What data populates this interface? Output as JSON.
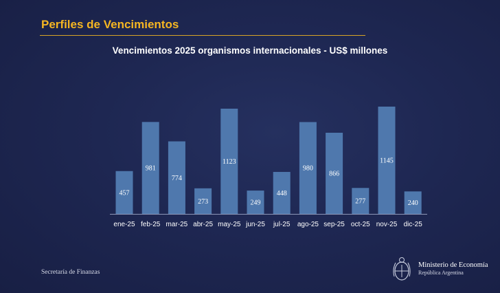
{
  "header": {
    "section_title": "Perfiles de Vencimientos",
    "accent_color": "#f5b622"
  },
  "chart_data": {
    "type": "bar",
    "title": "Vencimientos 2025 organismos internacionales - US$ millones",
    "categories": [
      "ene-25",
      "feb-25",
      "mar-25",
      "abr-25",
      "may-25",
      "jun-25",
      "jul-25",
      "ago-25",
      "sep-25",
      "oct-25",
      "nov-25",
      "dic-25"
    ],
    "values": [
      457,
      981,
      774,
      273,
      1123,
      249,
      448,
      980,
      866,
      277,
      1145,
      240
    ],
    "bar_color": "#4f78ad",
    "data_labels": true,
    "grid": false
  },
  "footer": {
    "left_text": "Secretaría de Finanzas",
    "ministry_name": "Ministerio de Economía",
    "ministry_sub": "República Argentina",
    "logo_icon": "argentina-coat-of-arms-icon"
  }
}
